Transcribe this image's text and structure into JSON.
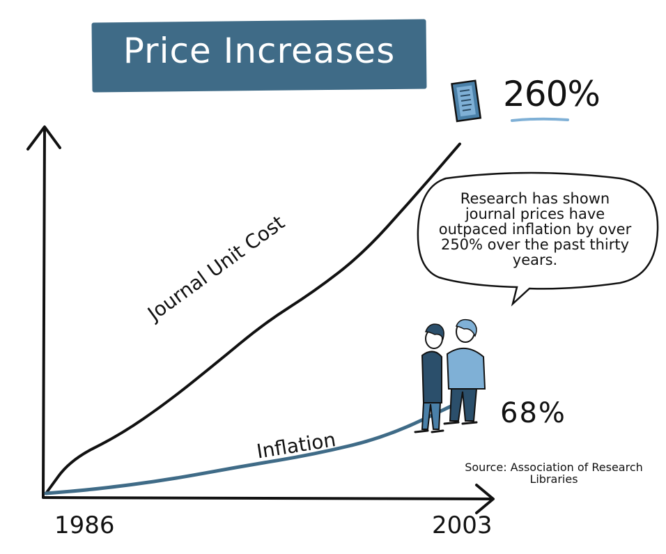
{
  "title": "Price Increases",
  "callout": "Research has shown journal prices have outpaced inflation by over 250% over the past thirty years.",
  "source": "Source: Association of Research Libraries",
  "colors": {
    "banner": "#3f6b87",
    "inflation_line": "#3f6b87",
    "journal_line": "#111111",
    "accent": "#7fb0d6"
  },
  "icons": {
    "journal": "journal-icon",
    "people": "people-icon"
  },
  "chart_data": {
    "type": "line",
    "title": "Price Increases",
    "xlabel": "",
    "ylabel": "",
    "x_ticks": [
      "1986",
      "2003"
    ],
    "xlim": [
      1986,
      2003
    ],
    "ylim": [
      0,
      280
    ],
    "ylabel_unit": "%",
    "grid": false,
    "legend": "none",
    "series": [
      {
        "name": "Journal Unit Cost",
        "end_label": "260%",
        "x": [
          1986,
          1987,
          1989,
          1991,
          1993,
          1995,
          1997,
          1999,
          2001,
          2003
        ],
        "y": [
          0,
          25,
          43,
          68,
          97,
          127,
          150,
          178,
          218,
          260
        ]
      },
      {
        "name": "Inflation",
        "end_label": "68%",
        "x": [
          1986,
          1988,
          1991,
          1994,
          1997,
          2000,
          2003
        ],
        "y": [
          0,
          3,
          10,
          20,
          29,
          42,
          68
        ]
      }
    ]
  }
}
